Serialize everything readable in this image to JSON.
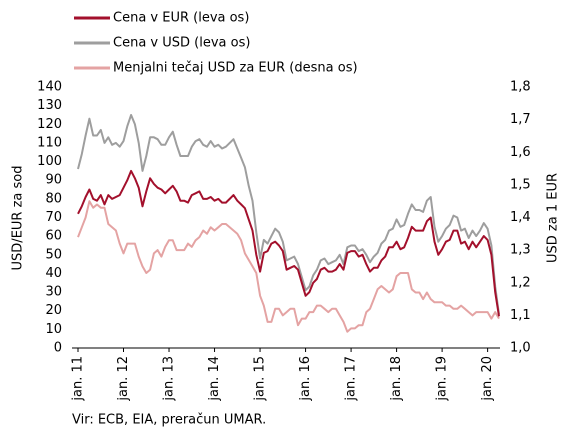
{
  "chart_data": {
    "type": "line",
    "legend": "top-left",
    "ylabel": "USD/EUR  za sod",
    "y2label": "USD za 1 EUR",
    "source": "Vir: ECB, EIA, preračun  UMAR.",
    "categories": [
      "jan. 11",
      null,
      null,
      null,
      null,
      null,
      null,
      null,
      null,
      null,
      null,
      null,
      "jan. 12",
      null,
      null,
      null,
      null,
      null,
      null,
      null,
      null,
      null,
      null,
      null,
      "jan. 13",
      null,
      null,
      null,
      null,
      null,
      null,
      null,
      null,
      null,
      null,
      null,
      "jan. 14",
      null,
      null,
      null,
      null,
      null,
      null,
      null,
      null,
      null,
      null,
      null,
      "jan. 15",
      null,
      null,
      null,
      null,
      null,
      null,
      null,
      null,
      null,
      null,
      null,
      "jan. 16",
      null,
      null,
      null,
      null,
      null,
      null,
      null,
      null,
      null,
      null,
      null,
      "jan. 17",
      null,
      null,
      null,
      null,
      null,
      null,
      null,
      null,
      null,
      null,
      null,
      "jan. 18",
      null,
      null,
      null,
      null,
      null,
      null,
      null,
      null,
      null,
      null,
      null,
      "jan. 19",
      null,
      null,
      null,
      null,
      null,
      null,
      null,
      null,
      null,
      null,
      null,
      "jan. 20",
      null,
      null,
      null
    ],
    "ylim": [
      0,
      140
    ],
    "yticks": [
      0,
      10,
      20,
      30,
      40,
      50,
      60,
      70,
      80,
      90,
      100,
      110,
      120,
      130,
      140
    ],
    "y2lim": [
      1.0,
      1.8
    ],
    "y2ticks": [
      {
        "value": 1.0,
        "label": "1,0"
      },
      {
        "value": 1.1,
        "label": "1,1"
      },
      {
        "value": 1.2,
        "label": "1,2"
      },
      {
        "value": 1.3,
        "label": "1,3"
      },
      {
        "value": 1.4,
        "label": "1,4"
      },
      {
        "value": 1.5,
        "label": "1,5"
      },
      {
        "value": 1.6,
        "label": "1,6"
      },
      {
        "value": 1.7,
        "label": "1,7"
      },
      {
        "value": 1.8,
        "label": "1,8"
      }
    ],
    "series": [
      {
        "name": "Cena v EUR (leva os)",
        "color": "#a3102c",
        "values": [
          72,
          76,
          81,
          85,
          80,
          79,
          82,
          77,
          82,
          80,
          81,
          82,
          86,
          90,
          95,
          91,
          86,
          76,
          84,
          91,
          88,
          86,
          85,
          83,
          85,
          87,
          84,
          79,
          79,
          78,
          82,
          83,
          84,
          80,
          80,
          81,
          79,
          80,
          78,
          78,
          80,
          82,
          79,
          77,
          75,
          69,
          63,
          50,
          41,
          51,
          52,
          56,
          57,
          55,
          52,
          42,
          43,
          44,
          42,
          35,
          28,
          30,
          35,
          37,
          42,
          43,
          41,
          41,
          42,
          45,
          42,
          51,
          52,
          52,
          49,
          50,
          45,
          41,
          43,
          43,
          47,
          49,
          54,
          54,
          57,
          53,
          54,
          59,
          65,
          63,
          63,
          63,
          68,
          70,
          57,
          50,
          53,
          57,
          58,
          63,
          63,
          56,
          57,
          53,
          57,
          54,
          57,
          60,
          58,
          50,
          30,
          17
        ]
      },
      {
        "name": "Cena v USD (leva os)",
        "color": "#9e9e9e",
        "values": [
          96,
          104,
          114,
          123,
          114,
          114,
          117,
          110,
          113,
          109,
          110,
          108,
          111,
          119,
          125,
          120,
          110,
          95,
          103,
          113,
          113,
          112,
          109,
          109,
          113,
          116,
          109,
          103,
          103,
          103,
          108,
          111,
          112,
          109,
          108,
          111,
          108,
          109,
          107,
          108,
          110,
          112,
          107,
          102,
          97,
          87,
          79,
          62,
          48,
          58,
          56,
          60,
          64,
          62,
          57,
          47,
          48,
          49,
          45,
          38,
          31,
          33,
          39,
          42,
          47,
          48,
          45,
          46,
          47,
          50,
          45,
          54,
          55,
          55,
          52,
          53,
          50,
          46,
          49,
          51,
          56,
          58,
          63,
          64,
          69,
          65,
          66,
          72,
          77,
          74,
          74,
          73,
          79,
          81,
          65,
          57,
          60,
          64,
          66,
          71,
          70,
          63,
          64,
          59,
          63,
          60,
          63,
          67,
          64,
          55,
          33,
          18
        ]
      },
      {
        "name": "Menjalni tečaj USD za EUR (desna os)",
        "color": "#e4a3a3",
        "axis": "y2",
        "values": [
          1.34,
          1.37,
          1.4,
          1.45,
          1.43,
          1.44,
          1.43,
          1.43,
          1.38,
          1.37,
          1.36,
          1.32,
          1.29,
          1.32,
          1.32,
          1.32,
          1.28,
          1.25,
          1.23,
          1.24,
          1.29,
          1.3,
          1.28,
          1.31,
          1.33,
          1.33,
          1.3,
          1.3,
          1.3,
          1.32,
          1.31,
          1.33,
          1.34,
          1.36,
          1.35,
          1.37,
          1.36,
          1.37,
          1.38,
          1.38,
          1.37,
          1.36,
          1.35,
          1.33,
          1.29,
          1.27,
          1.25,
          1.23,
          1.16,
          1.13,
          1.08,
          1.08,
          1.12,
          1.12,
          1.1,
          1.11,
          1.12,
          1.12,
          1.07,
          1.09,
          1.09,
          1.11,
          1.11,
          1.13,
          1.13,
          1.12,
          1.11,
          1.12,
          1.12,
          1.1,
          1.08,
          1.05,
          1.06,
          1.06,
          1.07,
          1.07,
          1.11,
          1.12,
          1.15,
          1.18,
          1.19,
          1.18,
          1.17,
          1.18,
          1.22,
          1.23,
          1.23,
          1.23,
          1.18,
          1.17,
          1.17,
          1.15,
          1.17,
          1.15,
          1.14,
          1.14,
          1.14,
          1.13,
          1.13,
          1.12,
          1.12,
          1.13,
          1.12,
          1.11,
          1.1,
          1.11,
          1.11,
          1.11,
          1.11,
          1.09,
          1.11,
          1.09
        ]
      }
    ]
  }
}
